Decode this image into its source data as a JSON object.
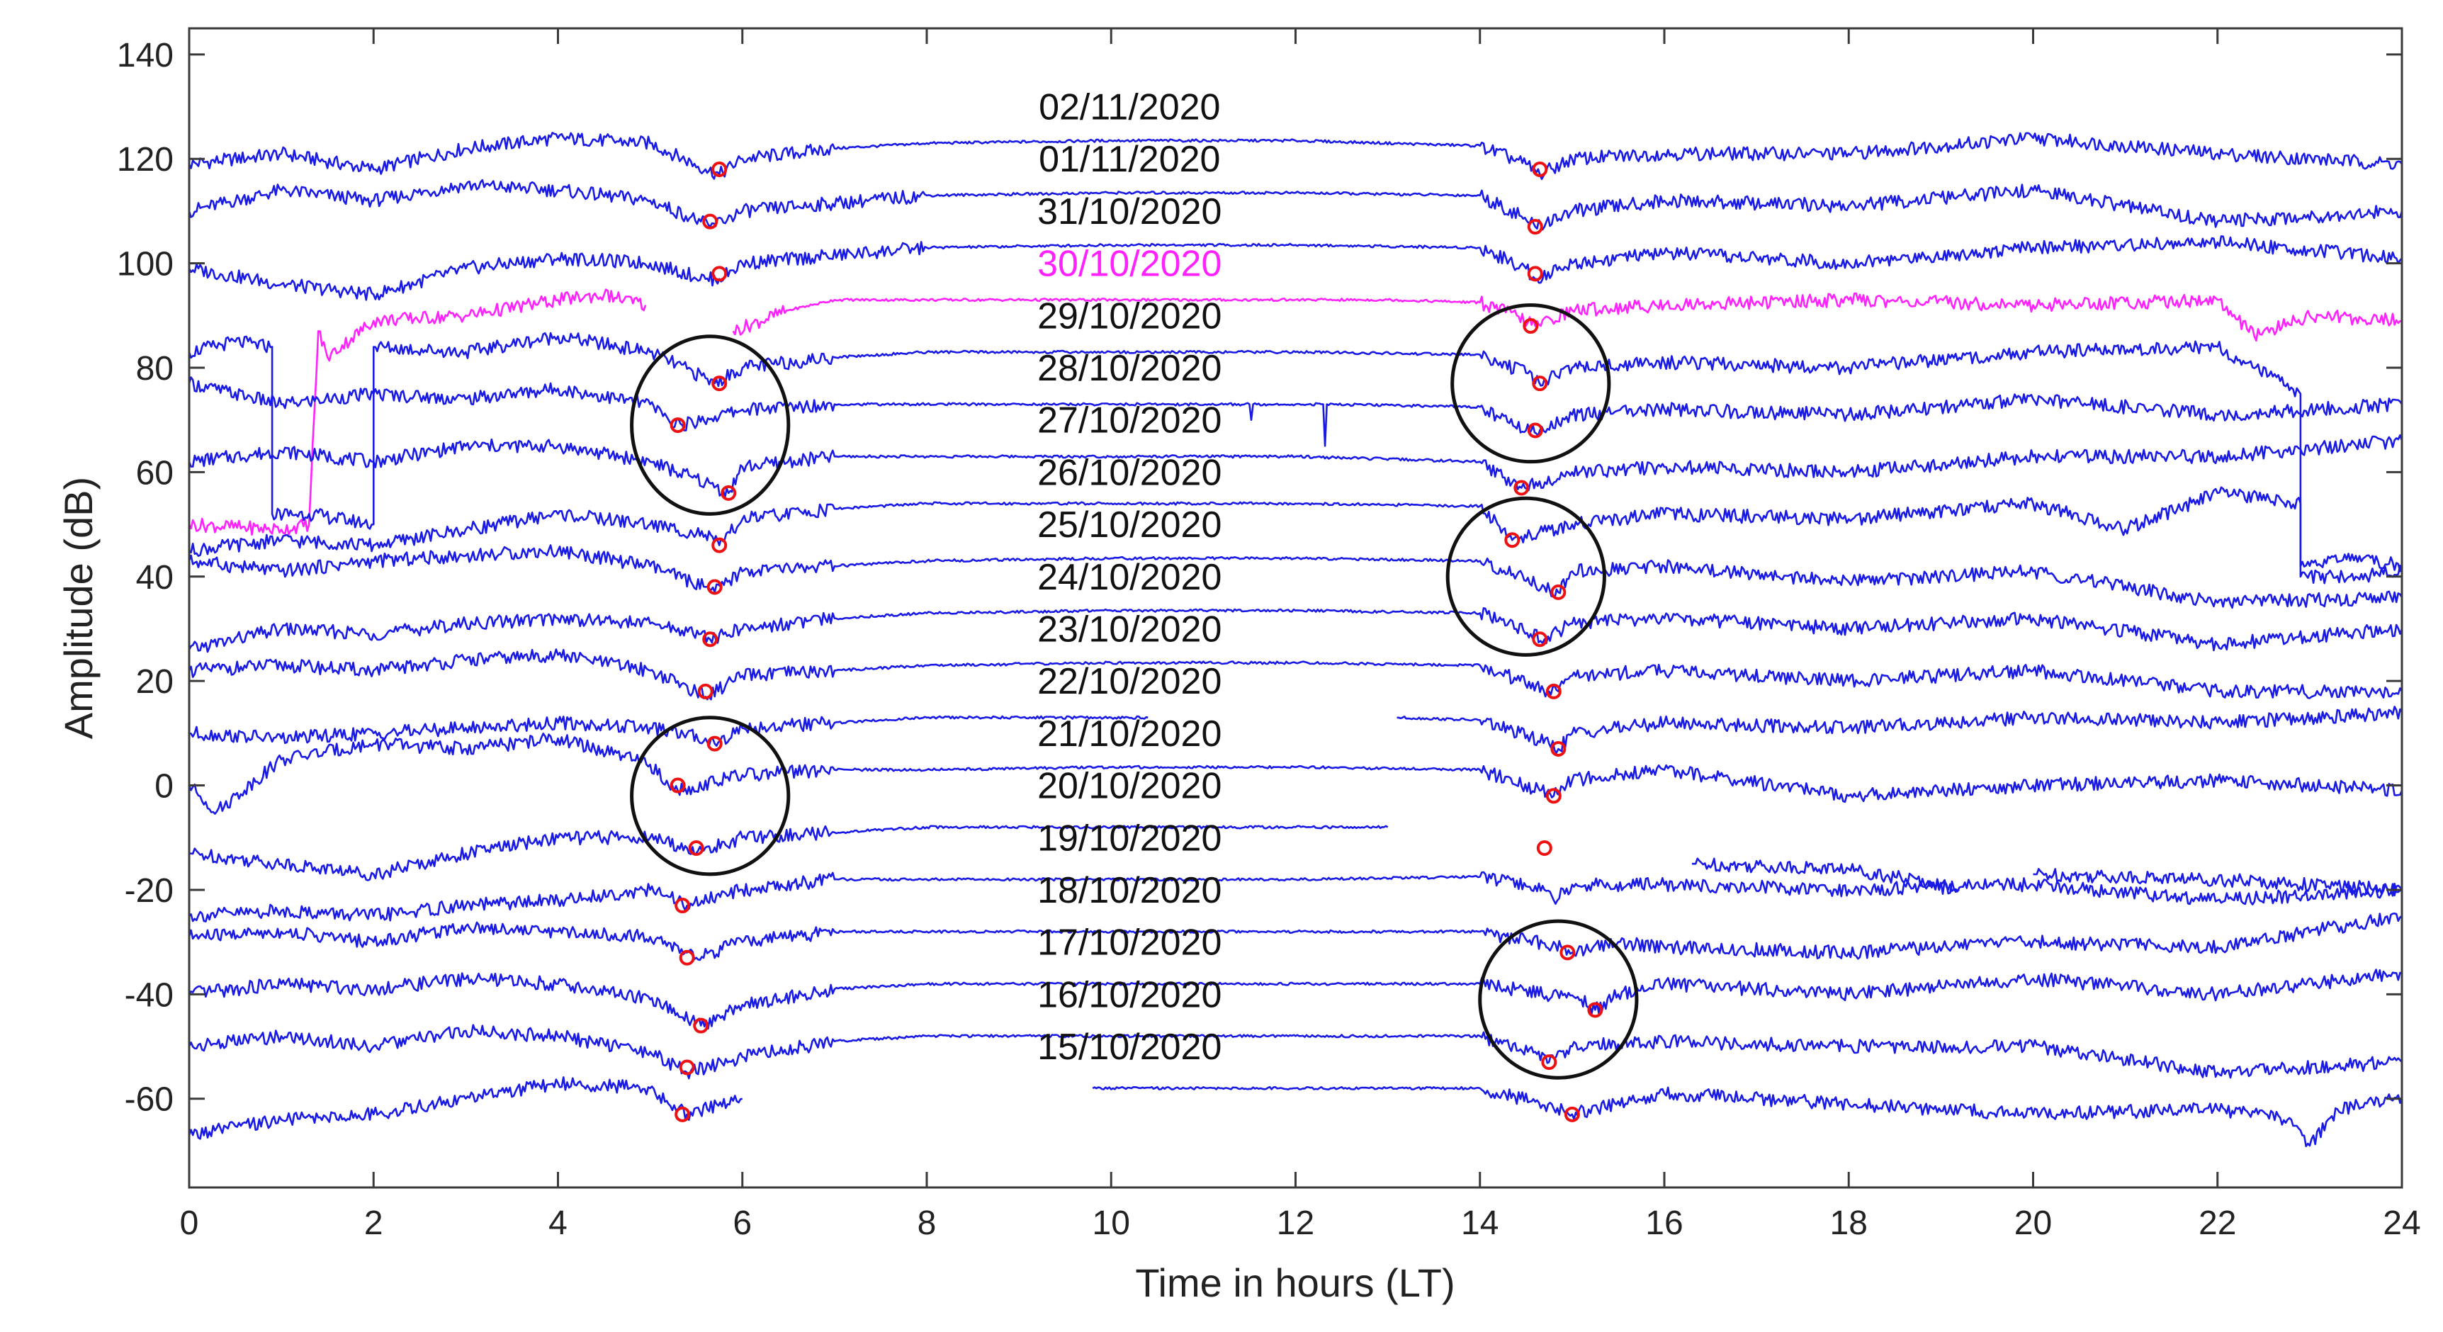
{
  "chart_data": {
    "type": "line",
    "xlabel": "Time in hours (LT)",
    "ylabel": "Amplitude (dB)",
    "xlim": [
      0,
      24
    ],
    "ylim": [
      -77,
      145
    ],
    "xticks": [
      0,
      2,
      4,
      6,
      8,
      10,
      12,
      14,
      16,
      18,
      20,
      22,
      24
    ],
    "yticks": [
      -60,
      -40,
      -20,
      0,
      20,
      40,
      60,
      80,
      100,
      120,
      140
    ],
    "grid": false,
    "legend": "none",
    "colors": {
      "normal": "#1a1ae6",
      "highlight": "#ff22ff",
      "marker": "#ee1111",
      "circle": "#111111"
    },
    "series": [
      {
        "label": "02/11/2020",
        "color": "normal",
        "label_y": 130,
        "x": [
          0,
          1,
          2,
          3,
          4,
          5,
          5.6,
          5.75,
          6,
          7,
          8,
          10,
          12,
          14,
          14.5,
          14.65,
          15,
          16,
          18,
          20,
          22,
          24
        ],
        "y": [
          119,
          121,
          118,
          122,
          124,
          123,
          118,
          117,
          120,
          122,
          123,
          123.5,
          123.5,
          122.5,
          119,
          117,
          120,
          121,
          121,
          124,
          121,
          119
        ],
        "markers": [
          [
            5.75,
            118
          ],
          [
            14.65,
            118
          ]
        ]
      },
      {
        "label": "01/11/2020",
        "color": "normal",
        "label_y": 120,
        "x": [
          0,
          1,
          2,
          3,
          4,
          5,
          5.55,
          5.65,
          6,
          8,
          10,
          12,
          14,
          14.45,
          14.6,
          15,
          16,
          18,
          20,
          22,
          24
        ],
        "y": [
          110,
          114,
          112,
          115,
          114,
          112,
          108,
          107,
          110,
          113,
          113.5,
          113.5,
          113,
          109,
          107,
          110,
          112,
          111,
          114,
          108,
          110
        ],
        "markers": [
          [
            5.65,
            108
          ],
          [
            14.6,
            107
          ]
        ]
      },
      {
        "label": "31/10/2020",
        "color": "normal",
        "label_y": 110,
        "x": [
          0,
          1,
          2,
          3,
          4,
          5,
          5.6,
          5.75,
          6,
          8,
          10,
          12,
          14,
          14.5,
          14.6,
          15,
          16,
          18,
          20,
          22,
          24
        ],
        "y": [
          99,
          96,
          94,
          99,
          101,
          100,
          97,
          97,
          100,
          103,
          103.5,
          103.5,
          103,
          99,
          97,
          100,
          102,
          100,
          103,
          104,
          101
        ],
        "markers": [
          [
            5.75,
            98
          ],
          [
            14.6,
            98
          ]
        ]
      },
      {
        "label": "30/10/2020",
        "color": "highlight",
        "label_y": 100,
        "x": [
          0,
          1,
          1.3,
          1.4,
          1.5,
          2,
          3,
          4,
          4.5,
          4.95,
          null,
          5.9,
          6.5,
          7,
          8,
          10,
          12,
          13,
          14,
          14.4,
          14.6,
          15,
          16,
          18,
          20,
          22,
          22.4,
          23,
          24
        ],
        "y": [
          50,
          49,
          50,
          87,
          82,
          89,
          90,
          93,
          94,
          92,
          null,
          87,
          91,
          93,
          93,
          93,
          93,
          93,
          92.5,
          90,
          88,
          91,
          92,
          93,
          92,
          93,
          86,
          90,
          89
        ],
        "markers": [
          [
            14.55,
            88
          ]
        ]
      },
      {
        "label": "29/10/2020",
        "color": "normal",
        "label_y": 90,
        "x": [
          0,
          0.5,
          0.9,
          0.9,
          1.3,
          2,
          2,
          3,
          4,
          5,
          5.6,
          5.7,
          6,
          7,
          8,
          10,
          12,
          14,
          14.5,
          14.6,
          15,
          16,
          18,
          20,
          22,
          22.9,
          22.9,
          23.5,
          24
        ],
        "y": [
          83,
          85,
          84,
          52,
          52,
          50,
          84,
          83,
          86,
          83,
          78,
          77,
          80,
          82,
          83,
          83,
          83,
          82.5,
          79,
          77,
          80,
          81,
          80,
          83,
          84,
          75,
          40,
          40,
          41
        ],
        "markers": [
          [
            5.75,
            77
          ],
          [
            14.65,
            77
          ]
        ]
      },
      {
        "label": "28/10/2020",
        "color": "normal",
        "label_y": 80,
        "x": [
          0,
          1,
          2,
          3,
          4,
          5,
          5.2,
          5.35,
          6,
          7,
          8,
          10,
          11.5,
          11.52,
          11.54,
          12,
          12.3,
          12.32,
          12.34,
          14,
          14.5,
          14.65,
          15,
          16,
          18,
          20,
          22,
          24
        ],
        "y": [
          77,
          73,
          75,
          74,
          76,
          73,
          70,
          69,
          72,
          73,
          73,
          73,
          73,
          70,
          73,
          73,
          73,
          65,
          73,
          72.5,
          68,
          68,
          71,
          72,
          71,
          74,
          71,
          73
        ],
        "markers": [
          [
            5.3,
            69
          ],
          [
            14.6,
            68
          ]
        ]
      },
      {
        "label": "27/10/2020",
        "color": "normal",
        "label_y": 70,
        "x": [
          0,
          1,
          2,
          3,
          4,
          5,
          5.6,
          5.85,
          6,
          7,
          8,
          10,
          12,
          14,
          14.35,
          14.45,
          15,
          16,
          18,
          20,
          22,
          24
        ],
        "y": [
          62,
          64,
          62,
          65,
          65,
          62,
          58,
          56,
          61,
          63,
          63,
          63,
          63,
          62,
          58,
          57,
          60,
          61,
          60,
          63,
          63,
          66
        ],
        "markers": [
          [
            5.85,
            56
          ],
          [
            14.45,
            57
          ]
        ]
      },
      {
        "label": "26/10/2020",
        "color": "normal",
        "label_y": 60,
        "x": [
          0,
          1,
          2,
          3,
          4,
          5,
          5.6,
          5.75,
          6,
          7,
          8,
          10,
          12,
          14,
          14.25,
          14.35,
          15,
          16,
          18,
          20,
          21,
          22,
          22.9,
          22.9,
          23.5,
          24
        ],
        "y": [
          45,
          47,
          46,
          49,
          52,
          50,
          48,
          46,
          51,
          53,
          54,
          54,
          54,
          53.5,
          49,
          47,
          50,
          52,
          51,
          54,
          49,
          56,
          54,
          42,
          44,
          42
        ],
        "markers": [
          [
            5.75,
            46
          ],
          [
            14.35,
            47
          ]
        ]
      },
      {
        "label": "25/10/2020",
        "color": "normal",
        "label_y": 50,
        "x": [
          0,
          1,
          2,
          3,
          4,
          5,
          5.6,
          5.7,
          6,
          7,
          8,
          10,
          12,
          14,
          14.7,
          14.85,
          15,
          16,
          18,
          20,
          22,
          24
        ],
        "y": [
          43,
          41,
          43,
          44,
          45,
          42,
          38,
          37,
          41,
          42,
          43,
          43.5,
          43.5,
          43,
          38,
          37,
          41,
          42,
          39,
          41,
          35,
          36
        ],
        "markers": [
          [
            5.7,
            38
          ],
          [
            14.85,
            37
          ]
        ]
      },
      {
        "label": "24/10/2020",
        "color": "normal",
        "label_y": 40,
        "x": [
          0,
          1,
          2,
          3,
          4,
          5,
          5.55,
          5.65,
          6,
          7,
          8,
          10,
          12,
          14,
          14.55,
          14.7,
          15,
          16,
          18,
          20,
          22,
          24
        ],
        "y": [
          26,
          30,
          29,
          31,
          32,
          31,
          29,
          28,
          30,
          32,
          33,
          33.5,
          33.5,
          33,
          29,
          28,
          31,
          32,
          30,
          32,
          27,
          30
        ],
        "markers": [
          [
            5.65,
            28
          ],
          [
            14.65,
            28
          ]
        ]
      },
      {
        "label": "23/10/2020",
        "color": "normal",
        "label_y": 30,
        "x": [
          0,
          1,
          2,
          3,
          4,
          5,
          5.5,
          5.6,
          6,
          7,
          8,
          10,
          12,
          14,
          14.75,
          14.85,
          15,
          16,
          18,
          20,
          22,
          24
        ],
        "y": [
          22,
          23,
          22,
          24,
          25,
          22,
          18,
          17,
          21,
          22,
          23,
          23.5,
          23.5,
          23,
          18,
          18,
          21,
          22,
          20,
          22,
          18,
          18
        ],
        "markers": [
          [
            5.6,
            18
          ],
          [
            14.8,
            18
          ]
        ]
      },
      {
        "label": "22/10/2020",
        "color": "normal",
        "label_y": 20,
        "x": [
          0,
          1,
          2,
          3,
          4,
          5,
          5.6,
          5.7,
          6,
          7,
          8,
          10,
          10.4,
          null,
          13.1,
          14,
          14.75,
          14.85,
          15,
          16,
          18,
          20,
          22,
          24
        ],
        "y": [
          10,
          9,
          10,
          11,
          12,
          11,
          9,
          8,
          11,
          12,
          13,
          13,
          13,
          null,
          13,
          12.5,
          8,
          7,
          10,
          12,
          11,
          13,
          12,
          14
        ],
        "markers": [
          [
            5.7,
            8
          ],
          [
            14.85,
            7
          ]
        ]
      },
      {
        "label": "21/10/2020",
        "color": "normal",
        "label_y": 10,
        "x": [
          0,
          0.3,
          1,
          2,
          3,
          4,
          5,
          5.2,
          5.3,
          6,
          7,
          8,
          10,
          12,
          14,
          14.65,
          14.8,
          15,
          16,
          18,
          20,
          22,
          24
        ],
        "y": [
          0,
          -5,
          5,
          8,
          7,
          9,
          4,
          0,
          -1,
          2,
          3,
          3,
          3.5,
          3.5,
          3,
          -1,
          -2,
          1,
          3,
          -2,
          0,
          1,
          -1
        ],
        "markers": [
          [
            5.3,
            0
          ],
          [
            14.8,
            -2
          ]
        ]
      },
      {
        "label": "20/10/2020",
        "color": "normal",
        "label_y": 0,
        "x": [
          0,
          1,
          2,
          3,
          4,
          5,
          5.4,
          5.5,
          6,
          7,
          8,
          10,
          12,
          13,
          null,
          16.3,
          18,
          19,
          19.2,
          null,
          20,
          22,
          24
        ],
        "y": [
          -13,
          -15,
          -17,
          -13,
          -10,
          -10,
          -12,
          -13,
          -10,
          -9,
          -8,
          -8,
          -8,
          -8,
          null,
          -15,
          -16,
          -19,
          -20,
          null,
          -17,
          -18,
          -20
        ],
        "markers": [
          [
            5.5,
            -12
          ],
          [
            14.7,
            -12
          ]
        ]
      },
      {
        "label": "19/10/2020",
        "color": "normal",
        "label_y": -10,
        "x": [
          0,
          1,
          2,
          3,
          4,
          5,
          5.3,
          5.4,
          6,
          7,
          8,
          10,
          12,
          14,
          14.7,
          14.8,
          15,
          16,
          18,
          20,
          22,
          24
        ],
        "y": [
          -25,
          -24,
          -25,
          -23,
          -22,
          -20,
          -22,
          -23,
          -20,
          -18,
          -18,
          -18,
          -18,
          -17.5,
          -20,
          -22,
          -19,
          -19,
          -20,
          -19,
          -22,
          -20
        ],
        "markers": [
          [
            5.35,
            -23
          ]
        ]
      },
      {
        "label": "18/10/2020",
        "color": "normal",
        "label_y": -20,
        "x": [
          0,
          1,
          2,
          3,
          4,
          5,
          5.4,
          5.5,
          6,
          7,
          8,
          10,
          12,
          14,
          14.9,
          15,
          15.5,
          16,
          18,
          20,
          22,
          24
        ],
        "y": [
          -29,
          -28,
          -30,
          -27,
          -28,
          -29,
          -32,
          -33,
          -30,
          -28,
          -28,
          -28,
          -28,
          -28,
          -31,
          -32,
          -30,
          -31,
          -32,
          -30,
          -31,
          -25
        ],
        "markers": [
          [
            5.4,
            -33
          ],
          [
            14.95,
            -32
          ]
        ]
      },
      {
        "label": "17/10/2020",
        "color": "normal",
        "label_y": -30,
        "x": [
          0,
          1,
          2,
          3,
          4,
          5,
          5.45,
          5.55,
          6,
          7,
          8,
          10,
          12,
          14,
          15.1,
          15.25,
          15.5,
          16,
          18,
          20,
          22,
          24
        ],
        "y": [
          -40,
          -38,
          -39,
          -37,
          -38,
          -41,
          -45,
          -46,
          -42,
          -39,
          -38,
          -38,
          -38,
          -38,
          -41,
          -43,
          -40,
          -38,
          -40,
          -37,
          -40,
          -36
        ],
        "markers": [
          [
            5.55,
            -46
          ],
          [
            15.25,
            -43
          ]
        ]
      },
      {
        "label": "16/10/2020",
        "color": "normal",
        "label_y": -40,
        "x": [
          0,
          1,
          2,
          3,
          4,
          5,
          5.3,
          5.4,
          6,
          7,
          8,
          10,
          12,
          14,
          14.6,
          14.75,
          15,
          16,
          18,
          20,
          22,
          24
        ],
        "y": [
          -50,
          -48,
          -50,
          -47,
          -48,
          -51,
          -54,
          -55,
          -52,
          -49,
          -48,
          -48,
          -48,
          -48,
          -51,
          -53,
          -50,
          -49,
          -50,
          -50,
          -55,
          -53
        ],
        "markers": [
          [
            5.4,
            -54
          ],
          [
            14.75,
            -53
          ]
        ]
      },
      {
        "label": "15/10/2020",
        "color": "normal",
        "label_y": -50,
        "x": [
          0,
          1,
          2,
          3,
          4,
          5,
          5.3,
          5.4,
          6,
          null,
          9.8,
          12,
          14,
          14.9,
          15,
          16,
          18,
          20,
          22,
          22.8,
          23,
          23.3,
          24
        ],
        "y": [
          -67,
          -64,
          -63,
          -60,
          -57,
          -58,
          -62,
          -63,
          -60,
          null,
          -58,
          -58,
          -58,
          -62,
          -63,
          -59,
          -61,
          -63,
          -62,
          -64,
          -69,
          -62,
          -60
        ],
        "markers": [
          [
            5.35,
            -63
          ],
          [
            15,
            -63
          ]
        ]
      }
    ],
    "circles": [
      {
        "x": 5.65,
        "y": 69,
        "rx": 0.85,
        "ry": 17
      },
      {
        "x": 14.55,
        "y": 77,
        "rx": 0.85,
        "ry": 15
      },
      {
        "x": 14.5,
        "y": 40,
        "rx": 0.85,
        "ry": 15
      },
      {
        "x": 5.65,
        "y": -2,
        "rx": 0.85,
        "ry": 15
      },
      {
        "x": 14.85,
        "y": -41,
        "rx": 0.85,
        "ry": 15
      }
    ]
  }
}
